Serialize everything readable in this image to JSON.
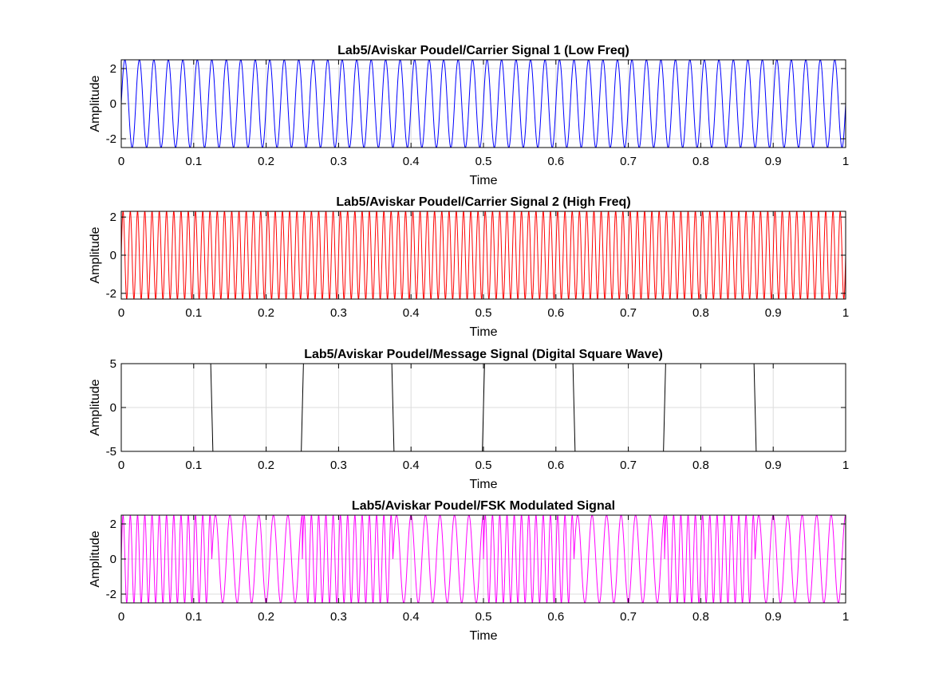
{
  "figure": {
    "background": "#ffffff"
  },
  "chart_data": [
    {
      "type": "line",
      "title": "Lab5/Aviskar Poudel/Carrier Signal 1 (Low Freq)",
      "xlabel": "Time",
      "ylabel": "Amplitude",
      "xlim": [
        0,
        1
      ],
      "ylim": [
        -2.5,
        2.5
      ],
      "xticks": [
        0,
        0.1,
        0.2,
        0.3,
        0.4,
        0.5,
        0.6,
        0.7,
        0.8,
        0.9,
        1
      ],
      "xtick_labels": [
        "0",
        "0.1",
        "0.2",
        "0.3",
        "0.4",
        "0.5",
        "0.6",
        "0.7",
        "0.8",
        "0.9",
        "1"
      ],
      "yticks": [
        -2,
        0,
        2
      ],
      "ytick_labels": [
        "-2",
        "0",
        "2"
      ],
      "grid": true,
      "series": [
        {
          "kind": "sine",
          "amplitude": 2.5,
          "frequency_hz": 50,
          "color": "#0000ff"
        }
      ]
    },
    {
      "type": "line",
      "title": "Lab5/Aviskar Poudel/Carrier Signal 2 (High Freq)",
      "xlabel": "Time",
      "ylabel": "Amplitude",
      "xlim": [
        0,
        1
      ],
      "ylim": [
        -2.3,
        2.3
      ],
      "xticks": [
        0,
        0.1,
        0.2,
        0.3,
        0.4,
        0.5,
        0.6,
        0.7,
        0.8,
        0.9,
        1
      ],
      "xtick_labels": [
        "0",
        "0.1",
        "0.2",
        "0.3",
        "0.4",
        "0.5",
        "0.6",
        "0.7",
        "0.8",
        "0.9",
        "1"
      ],
      "yticks": [
        -2,
        0,
        2
      ],
      "ytick_labels": [
        "-2",
        "0",
        "2"
      ],
      "grid": true,
      "series": [
        {
          "kind": "sine",
          "amplitude": 2.3,
          "frequency_hz": 100,
          "color": "#ff0000"
        }
      ]
    },
    {
      "type": "line",
      "title": "Lab5/Aviskar Poudel/Message Signal (Digital Square Wave)",
      "xlabel": "Time",
      "ylabel": "Amplitude",
      "xlim": [
        0,
        1
      ],
      "ylim": [
        -5,
        5
      ],
      "xticks": [
        0,
        0.1,
        0.2,
        0.3,
        0.4,
        0.5,
        0.6,
        0.7,
        0.8,
        0.9,
        1
      ],
      "xtick_labels": [
        "0",
        "0.1",
        "0.2",
        "0.3",
        "0.4",
        "0.5",
        "0.6",
        "0.7",
        "0.8",
        "0.9",
        "1"
      ],
      "yticks": [
        -5,
        0,
        5
      ],
      "ytick_labels": [
        "-5",
        "0",
        "5"
      ],
      "grid": true,
      "series": [
        {
          "kind": "square",
          "amplitude": 5,
          "frequency_hz": 4,
          "color": "#000000"
        }
      ]
    },
    {
      "type": "line",
      "title": "Lab5/Aviskar Poudel/FSK Modulated Signal",
      "xlabel": "Time",
      "ylabel": "Amplitude",
      "xlim": [
        0,
        1
      ],
      "ylim": [
        -2.5,
        2.5
      ],
      "xticks": [
        0,
        0.1,
        0.2,
        0.3,
        0.4,
        0.5,
        0.6,
        0.7,
        0.8,
        0.9,
        1
      ],
      "xtick_labels": [
        "0",
        "0.1",
        "0.2",
        "0.3",
        "0.4",
        "0.5",
        "0.6",
        "0.7",
        "0.8",
        "0.9",
        "1"
      ],
      "yticks": [
        -2,
        0,
        2
      ],
      "ytick_labels": [
        "-2",
        "0",
        "2"
      ],
      "grid": true,
      "series": [
        {
          "kind": "fsk",
          "amplitude": 2.5,
          "bit_period": 0.125,
          "bits": [
            1,
            0,
            1,
            0,
            1,
            0,
            1,
            0
          ],
          "frequency_for_bit_1_hz": 100,
          "frequency_for_bit_0_hz": 50,
          "color": "#ff00ff"
        }
      ]
    }
  ]
}
